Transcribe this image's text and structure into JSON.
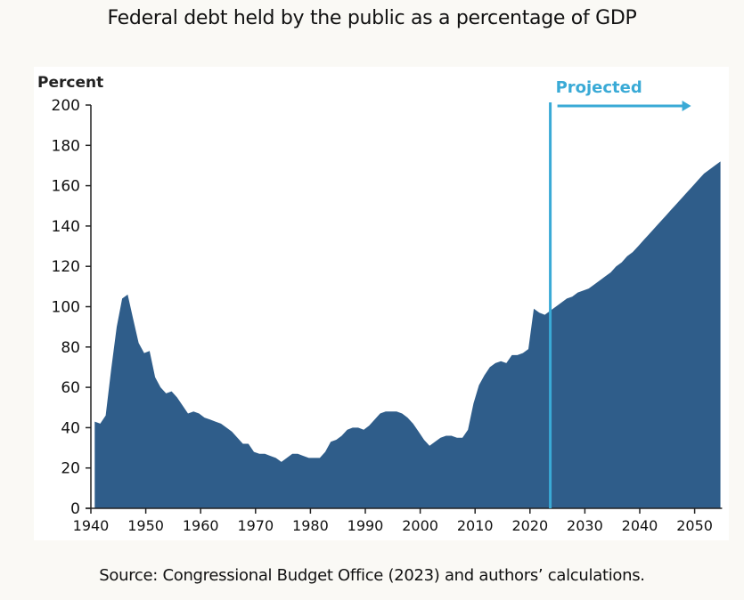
{
  "title": "Federal debt held by the public as a percentage of GDP",
  "source": "Source: Congressional Budget Office (2023) and authors’ calculations.",
  "colors": {
    "fill": "#2f5d8a",
    "projection": "#3aaad6",
    "axis": "#222222"
  },
  "chart_data": {
    "type": "area",
    "title": "Federal debt held by the public as a percentage of GDP",
    "ylabel": "Percent",
    "xlabel": "",
    "xlim": [
      1940,
      2055
    ],
    "ylim": [
      0,
      200
    ],
    "xticks": [
      1940,
      1950,
      1960,
      1970,
      1980,
      1990,
      2000,
      2010,
      2020,
      2030,
      2040,
      2050
    ],
    "yticks": [
      0,
      20,
      40,
      60,
      80,
      100,
      120,
      140,
      160,
      180,
      200
    ],
    "grid": false,
    "annotation": {
      "label": "Projected",
      "year": 2023
    },
    "x": [
      1940,
      1941,
      1942,
      1943,
      1944,
      1945,
      1946,
      1947,
      1948,
      1949,
      1950,
      1951,
      1952,
      1953,
      1954,
      1955,
      1956,
      1957,
      1958,
      1959,
      1960,
      1961,
      1962,
      1963,
      1964,
      1965,
      1966,
      1967,
      1968,
      1969,
      1970,
      1971,
      1972,
      1973,
      1974,
      1975,
      1976,
      1977,
      1978,
      1979,
      1980,
      1981,
      1982,
      1983,
      1984,
      1985,
      1986,
      1987,
      1988,
      1989,
      1990,
      1991,
      1992,
      1993,
      1994,
      1995,
      1996,
      1997,
      1998,
      1999,
      2000,
      2001,
      2002,
      2003,
      2004,
      2005,
      2006,
      2007,
      2008,
      2009,
      2010,
      2011,
      2012,
      2013,
      2014,
      2015,
      2016,
      2017,
      2018,
      2019,
      2020,
      2021,
      2022,
      2023,
      2024,
      2025,
      2026,
      2027,
      2028,
      2029,
      2030,
      2031,
      2032,
      2033,
      2034,
      2035,
      2036,
      2037,
      2038,
      2039,
      2040,
      2041,
      2042,
      2043,
      2044,
      2045,
      2046,
      2047,
      2048,
      2049,
      2050,
      2051,
      2052,
      2053,
      2054
    ],
    "values": [
      43,
      42,
      46,
      69,
      90,
      104,
      106,
      94,
      82,
      77,
      78,
      65,
      60,
      57,
      58,
      55,
      51,
      47,
      48,
      47,
      45,
      44,
      43,
      42,
      40,
      38,
      35,
      32,
      32,
      28,
      27,
      27,
      26,
      25,
      23,
      25,
      27,
      27,
      26,
      25,
      25,
      25,
      28,
      33,
      34,
      36,
      39,
      40,
      40,
      39,
      41,
      44,
      47,
      48,
      48,
      48,
      47,
      45,
      42,
      38,
      34,
      31,
      33,
      35,
      36,
      36,
      35,
      35,
      39,
      52,
      61,
      66,
      70,
      72,
      73,
      72,
      76,
      76,
      77,
      79,
      99,
      97,
      96,
      98,
      100,
      102,
      104,
      105,
      107,
      108,
      109,
      111,
      113,
      115,
      117,
      120,
      122,
      125,
      127,
      130,
      133,
      136,
      139,
      142,
      145,
      148,
      151,
      154,
      157,
      160,
      163,
      166,
      168,
      170,
      172
    ]
  }
}
